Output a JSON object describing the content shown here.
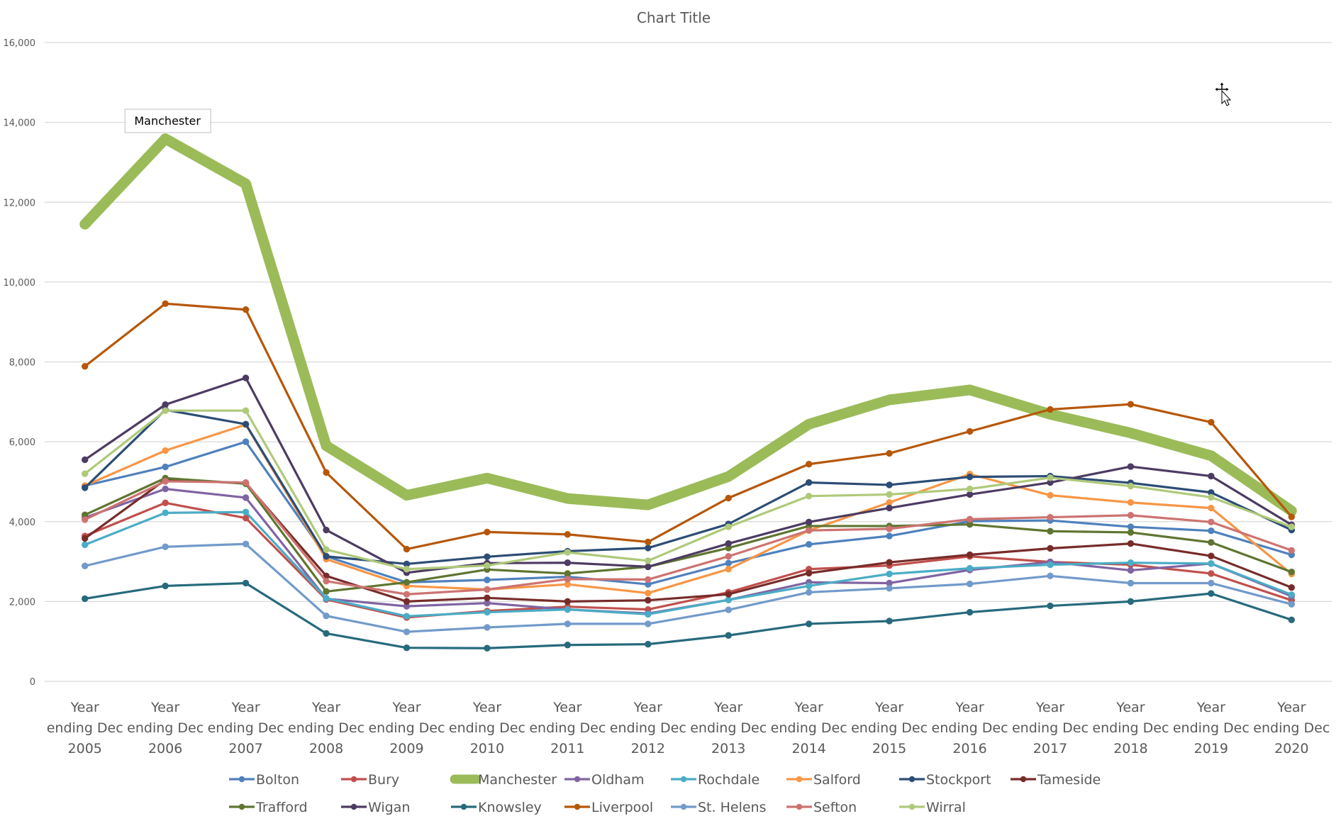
{
  "chart_data": {
    "type": "line",
    "title": "Chart Title",
    "xlabel": "",
    "ylabel": "",
    "ylim": [
      0,
      16000
    ],
    "yticks": [
      0,
      2000,
      4000,
      6000,
      8000,
      10000,
      12000,
      14000,
      16000
    ],
    "ytick_labels": [
      "0",
      "2,000",
      "4,000",
      "6,000",
      "8,000",
      "10,000",
      "12,000",
      "14,000",
      "16,000"
    ],
    "grid": true,
    "legend_position": "bottom",
    "categories": [
      [
        "Year",
        "ending Dec",
        "2005"
      ],
      [
        "Year",
        "ending Dec",
        "2006"
      ],
      [
        "Year",
        "ending Dec",
        "2007"
      ],
      [
        "Year",
        "ending Dec",
        "2008"
      ],
      [
        "Year",
        "ending Dec",
        "2009"
      ],
      [
        "Year",
        "ending Dec",
        "2010"
      ],
      [
        "Year",
        "ending Dec",
        "2011"
      ],
      [
        "Year",
        "ending Dec",
        "2012"
      ],
      [
        "Year",
        "ending Dec",
        "2013"
      ],
      [
        "Year",
        "ending Dec",
        "2014"
      ],
      [
        "Year",
        "ending Dec",
        "2015"
      ],
      [
        "Year",
        "ending Dec",
        "2016"
      ],
      [
        "Year",
        "ending Dec",
        "2017"
      ],
      [
        "Year",
        "ending Dec",
        "2018"
      ],
      [
        "Year",
        "ending Dec",
        "2019"
      ],
      [
        "Year",
        "ending Dec",
        "2020"
      ]
    ],
    "series": [
      {
        "name": "Bolton",
        "color": "#4f81bd",
        "highlight": false,
        "values": [
          4900,
          5370,
          6000,
          3130,
          2480,
          2540,
          2620,
          2430,
          2960,
          3430,
          3640,
          4010,
          4030,
          3870,
          3770,
          3170
        ]
      },
      {
        "name": "Bury",
        "color": "#c0504d",
        "highlight": false,
        "values": [
          3640,
          4470,
          4090,
          2050,
          1600,
          1760,
          1870,
          1800,
          2230,
          2810,
          2900,
          3130,
          2990,
          2920,
          2700,
          2030
        ]
      },
      {
        "name": "Manchester",
        "color": "#9bbb59",
        "highlight": true,
        "values": [
          11450,
          13590,
          12460,
          5900,
          4660,
          5090,
          4580,
          4420,
          5130,
          6440,
          7050,
          7300,
          6690,
          6220,
          5650,
          4270
        ]
      },
      {
        "name": "Oldham",
        "color": "#8064a2",
        "highlight": false,
        "values": [
          4100,
          4820,
          4600,
          2070,
          1880,
          1960,
          1800,
          1700,
          2040,
          2480,
          2460,
          2790,
          2990,
          2780,
          2950,
          2130
        ]
      },
      {
        "name": "Rochdale",
        "color": "#4bacc6",
        "highlight": false,
        "values": [
          3420,
          4220,
          4240,
          2080,
          1630,
          1730,
          1800,
          1680,
          2040,
          2390,
          2690,
          2830,
          2920,
          2970,
          2950,
          2170
        ]
      },
      {
        "name": "Salford",
        "color": "#f79646",
        "highlight": false,
        "values": [
          4900,
          5780,
          6430,
          3060,
          2390,
          2300,
          2430,
          2210,
          2810,
          3780,
          4480,
          5190,
          4660,
          4480,
          4340,
          2690
        ]
      },
      {
        "name": "Stockport",
        "color": "#2c4d75",
        "highlight": false,
        "values": [
          4850,
          6800,
          6440,
          3130,
          2940,
          3120,
          3260,
          3340,
          3940,
          4980,
          4920,
          5120,
          5140,
          4970,
          4730,
          3790
        ]
      },
      {
        "name": "Tameside",
        "color": "#772c2a",
        "highlight": false,
        "values": [
          3580,
          5050,
          4960,
          2640,
          2000,
          2090,
          2000,
          2030,
          2180,
          2710,
          2980,
          3170,
          3330,
          3450,
          3140,
          2350
        ]
      },
      {
        "name": "Trafford",
        "color": "#5f7530",
        "highlight": false,
        "values": [
          4170,
          5090,
          4950,
          2250,
          2480,
          2800,
          2700,
          2870,
          3340,
          3890,
          3890,
          3930,
          3760,
          3730,
          3480,
          2740
        ]
      },
      {
        "name": "Wigan",
        "color": "#4d3b62",
        "highlight": false,
        "values": [
          5550,
          6930,
          7600,
          3790,
          2720,
          2960,
          2970,
          2870,
          3450,
          3990,
          4340,
          4680,
          4980,
          5380,
          5140,
          3920
        ]
      },
      {
        "name": "Knowsley",
        "color": "#276a7c",
        "highlight": false,
        "values": [
          2070,
          2390,
          2460,
          1200,
          840,
          830,
          910,
          930,
          1150,
          1440,
          1510,
          1730,
          1890,
          2000,
          2200,
          1540
        ]
      },
      {
        "name": "Liverpool",
        "color": "#b65708",
        "highlight": false,
        "values": [
          7890,
          9460,
          9310,
          5230,
          3310,
          3740,
          3680,
          3490,
          4590,
          5440,
          5710,
          6260,
          6810,
          6940,
          6490,
          4120
        ]
      },
      {
        "name": "St. Helens",
        "color": "#729aca",
        "highlight": false,
        "values": [
          2890,
          3370,
          3440,
          1640,
          1240,
          1350,
          1440,
          1440,
          1790,
          2230,
          2330,
          2440,
          2640,
          2460,
          2460,
          1930
        ]
      },
      {
        "name": "Sefton",
        "color": "#cd7371",
        "highlight": false,
        "values": [
          4050,
          5010,
          4980,
          2510,
          2180,
          2300,
          2560,
          2550,
          3130,
          3780,
          3820,
          4060,
          4110,
          4160,
          3990,
          3280
        ]
      },
      {
        "name": "Wirral",
        "color": "#afc97a",
        "highlight": false,
        "values": [
          5200,
          6780,
          6780,
          3300,
          2810,
          2900,
          3230,
          3020,
          3870,
          4640,
          4680,
          4820,
          5100,
          4890,
          4610,
          3870
        ]
      }
    ],
    "annotations": [
      {
        "text": "Manchester",
        "series": "Manchester",
        "category_index": 1
      }
    ]
  },
  "colors": {
    "gridline": "#d9d9d9",
    "text": "#595959",
    "callout_border": "#bfbfbf"
  },
  "cursor": {
    "icon": "move-pointer-icon"
  }
}
